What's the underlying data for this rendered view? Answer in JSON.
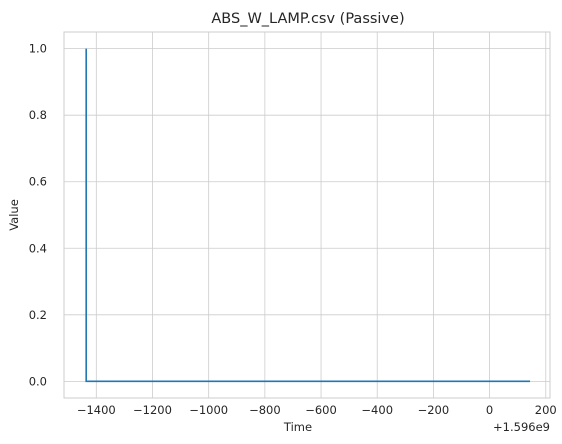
{
  "chart_data": {
    "type": "line",
    "title": "ABS_W_LAMP.csv (Passive)",
    "xlabel": "Time",
    "ylabel": "Value",
    "x_offset_label": "+1.596e9",
    "xlim": [
      -1515,
      215
    ],
    "ylim": [
      -0.05,
      1.05
    ],
    "x_ticks": [
      -1400,
      -1200,
      -1000,
      -800,
      -600,
      -400,
      -200,
      0,
      200
    ],
    "x_tick_labels": [
      "−1400",
      "−1200",
      "−1000",
      "−800",
      "−600",
      "−400",
      "−200",
      "0",
      "200"
    ],
    "y_ticks": [
      0.0,
      0.2,
      0.4,
      0.6,
      0.8,
      1.0
    ],
    "y_tick_labels": [
      "0.0",
      "0.2",
      "0.4",
      "0.6",
      "0.8",
      "1.0"
    ],
    "grid": true,
    "series": [
      {
        "color": "#1f77b4",
        "step": "post",
        "x": [
          -1436,
          -1436,
          144
        ],
        "y": [
          1,
          0,
          0
        ]
      }
    ]
  }
}
